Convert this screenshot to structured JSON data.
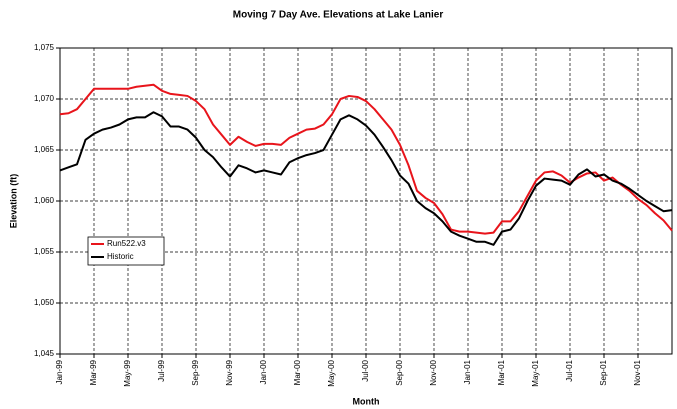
{
  "chart_data": {
    "type": "line",
    "title": "Moving 7 Day Ave. Elevations at Lake Lanier",
    "x_label": "Month",
    "y_label": "Elevation (ft)",
    "x": [
      0,
      0.5,
      1,
      1.5,
      2,
      2.5,
      3,
      3.5,
      4,
      4.5,
      5,
      5.5,
      6,
      6.5,
      7,
      7.5,
      8,
      8.5,
      9,
      9.5,
      10,
      10.5,
      11,
      11.5,
      12,
      12.5,
      13,
      13.5,
      14,
      14.5,
      15,
      15.5,
      16,
      16.5,
      17,
      17.5,
      18,
      18.5,
      19,
      19.5,
      20,
      20.5,
      21,
      21.5,
      22,
      22.5,
      23,
      23.5,
      24,
      24.5,
      25,
      25.5,
      26,
      26.5,
      27,
      27.5,
      28,
      28.5,
      29,
      29.5,
      30,
      30.5,
      31,
      31.5,
      32,
      32.5,
      33,
      33.5,
      34,
      34.5,
      35,
      35.5,
      36
    ],
    "series": [
      {
        "name": "Run522.v3",
        "color": "#e8141b",
        "values": [
          1068.5,
          1068.6,
          1069,
          1070,
          1071,
          1071,
          1071,
          1071,
          1071,
          1071.2,
          1071.3,
          1071.4,
          1070.8,
          1070.5,
          1070.4,
          1070.3,
          1069.8,
          1069,
          1067.5,
          1066.5,
          1065.5,
          1066.3,
          1065.8,
          1065.4,
          1065.6,
          1065.6,
          1065.5,
          1066.2,
          1066.6,
          1067,
          1067.1,
          1067.5,
          1068.5,
          1070,
          1070.3,
          1070.2,
          1069.8,
          1069,
          1068,
          1067,
          1065.5,
          1063.5,
          1061,
          1060.3,
          1059.8,
          1058.7,
          1057.2,
          1057,
          1057,
          1056.9,
          1056.8,
          1056.9,
          1058,
          1058,
          1059,
          1060.5,
          1062,
          1062.8,
          1062.9,
          1062.5,
          1061.8,
          1062.3,
          1062.7,
          1062.8,
          1062,
          1062.3,
          1061.6,
          1061,
          1060.2,
          1059.6,
          1058.8,
          1058.1,
          1057.1
        ]
      },
      {
        "name": "Historic",
        "color": "#000000",
        "values": [
          1063,
          1063.3,
          1063.6,
          1066,
          1066.6,
          1067,
          1067.2,
          1067.5,
          1068,
          1068.2,
          1068.2,
          1068.7,
          1068.3,
          1067.3,
          1067.3,
          1067,
          1066.2,
          1065,
          1064.3,
          1063.3,
          1062.4,
          1063.5,
          1063.2,
          1062.8,
          1063,
          1062.8,
          1062.6,
          1063.8,
          1064.2,
          1064.5,
          1064.7,
          1065,
          1066.5,
          1068,
          1068.4,
          1068,
          1067.4,
          1066.5,
          1065.3,
          1064,
          1062.5,
          1061.7,
          1060,
          1059.3,
          1058.8,
          1058,
          1057,
          1056.6,
          1056.3,
          1056,
          1056,
          1055.7,
          1057,
          1057.2,
          1058.3,
          1060,
          1061.5,
          1062.2,
          1062.1,
          1062,
          1061.6,
          1062.6,
          1063.1,
          1062.4,
          1062.6,
          1062,
          1061.7,
          1061.2,
          1060.6,
          1060,
          1059.5,
          1059,
          1059.1
        ]
      }
    ],
    "xlim": [
      0,
      36
    ],
    "xticks": [
      {
        "value": 0,
        "label": "Jan-99"
      },
      {
        "value": 2,
        "label": "Mar-99"
      },
      {
        "value": 4,
        "label": "May-99"
      },
      {
        "value": 6,
        "label": "Jul-99"
      },
      {
        "value": 8,
        "label": "Sep-99"
      },
      {
        "value": 10,
        "label": "Nov-99"
      },
      {
        "value": 12,
        "label": "Jan-00"
      },
      {
        "value": 14,
        "label": "Mar-00"
      },
      {
        "value": 16,
        "label": "May-00"
      },
      {
        "value": 18,
        "label": "Jul-00"
      },
      {
        "value": 20,
        "label": "Sep-00"
      },
      {
        "value": 22,
        "label": "Nov-00"
      },
      {
        "value": 24,
        "label": "Jan-01"
      },
      {
        "value": 26,
        "label": "Mar-01"
      },
      {
        "value": 28,
        "label": "May-01"
      },
      {
        "value": 30,
        "label": "Jul-01"
      },
      {
        "value": 32,
        "label": "Sep-01"
      },
      {
        "value": 34,
        "label": "Nov-01"
      }
    ],
    "ylim": [
      1045,
      1075
    ],
    "yticks": [
      {
        "value": 1045,
        "label": "1,045"
      },
      {
        "value": 1050,
        "label": "1,050"
      },
      {
        "value": 1055,
        "label": "1,055"
      },
      {
        "value": 1060,
        "label": "1,060"
      },
      {
        "value": 1065,
        "label": "1,065"
      },
      {
        "value": 1070,
        "label": "1,070"
      },
      {
        "value": 1075,
        "label": "1,075"
      }
    ],
    "grid": true,
    "legend": "left"
  }
}
